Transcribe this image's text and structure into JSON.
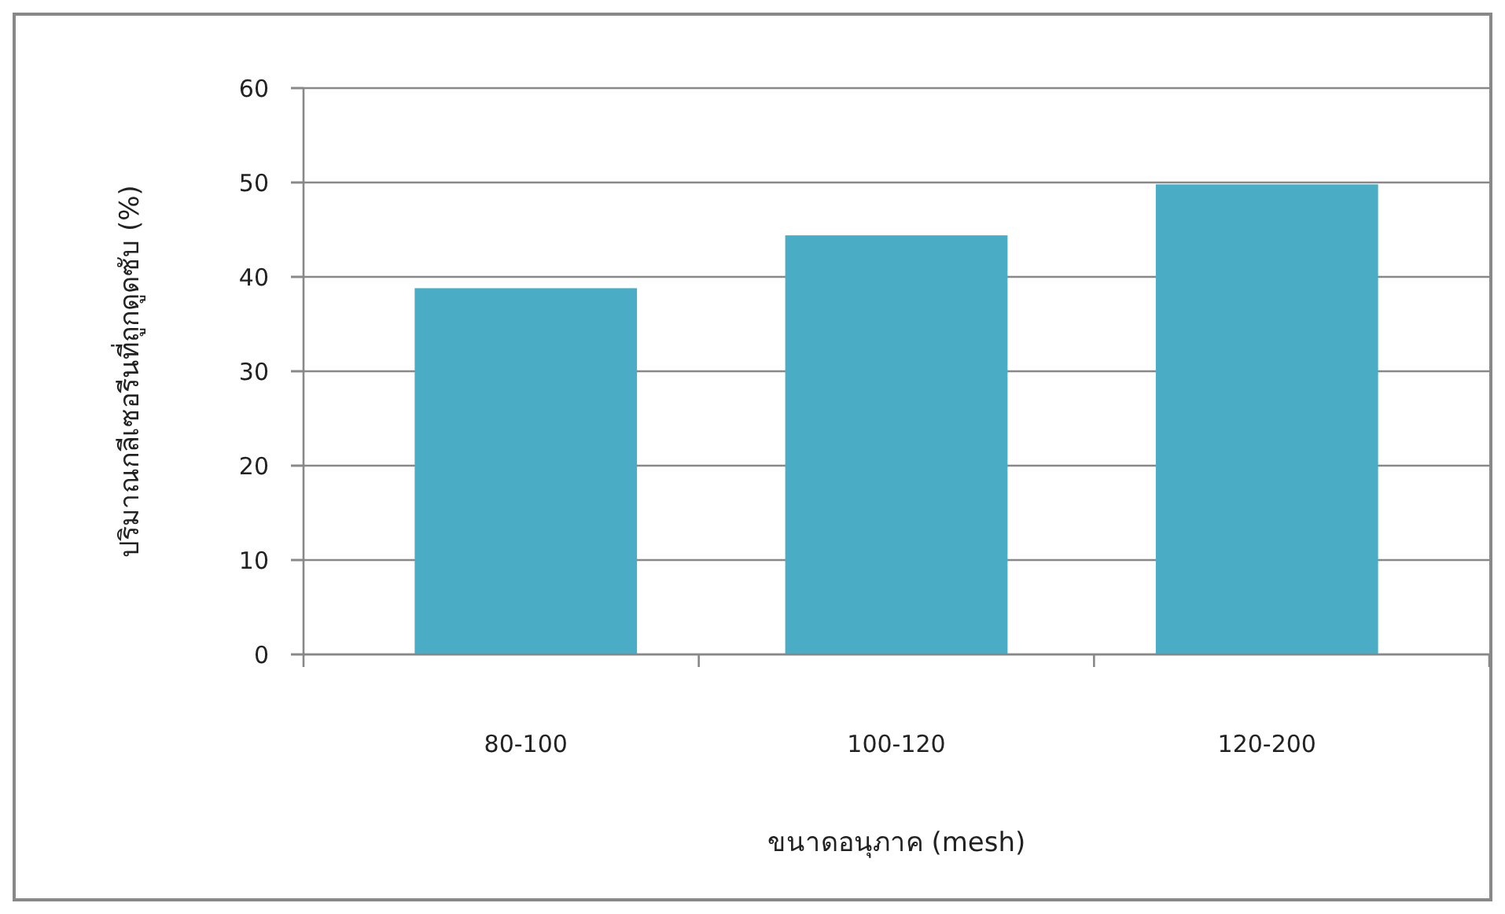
{
  "chart_data": {
    "type": "bar",
    "xlabel": "ขนาดอนุภาค (mesh)",
    "ylabel": "ปริมาณกลีเซอรีนที่ถูกดูดซับ (%)",
    "categories": [
      "80-100",
      "100-120",
      "120-200"
    ],
    "values": [
      38.8,
      44.4,
      49.8
    ],
    "color": "#4bacc6",
    "ylim": [
      0,
      60
    ],
    "yticks": [
      0,
      10,
      20,
      30,
      40,
      50,
      60
    ],
    "grid": "y"
  }
}
